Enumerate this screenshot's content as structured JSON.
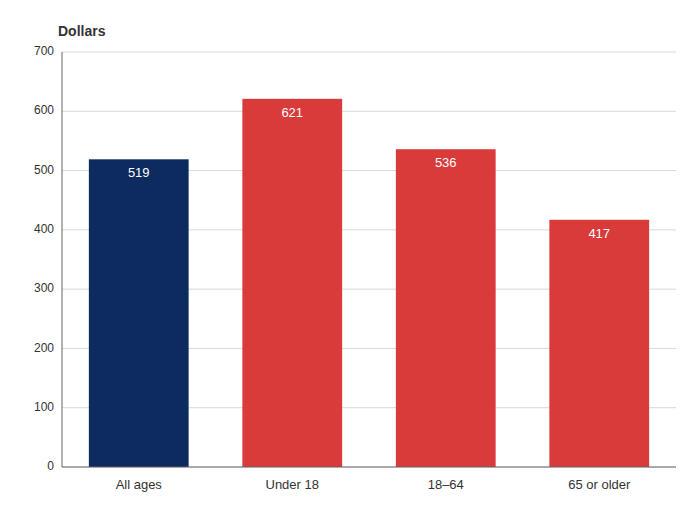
{
  "chart_data": {
    "type": "bar",
    "ylabel": "Dollars",
    "categories": [
      "All ages",
      "Under 18",
      "18–64",
      "65 or older"
    ],
    "values": [
      519,
      621,
      536,
      417
    ],
    "colors": [
      "#0d2b5e",
      "#d93a3a",
      "#d93a3a",
      "#d93a3a"
    ],
    "ylim": [
      0,
      700
    ],
    "yticks": [
      0,
      100,
      200,
      300,
      400,
      500,
      600,
      700
    ],
    "grid": true,
    "data_labels": true
  }
}
